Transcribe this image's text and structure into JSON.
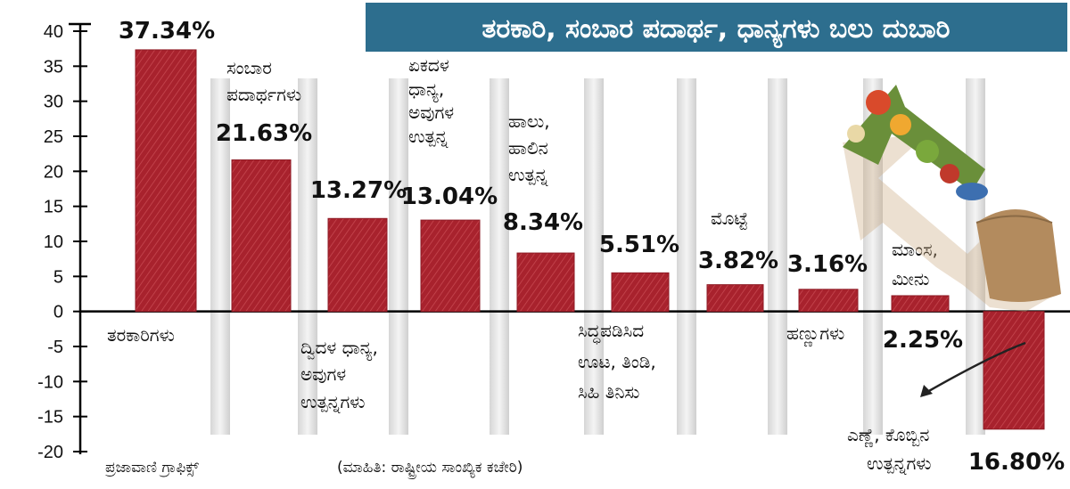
{
  "chart_data": {
    "type": "bar",
    "title": "ತರಕಾರಿ, ಸಂಬಾರ ಪದಾರ್ಥ, ಧಾನ್ಯಗಳು ಬಲು ದುಬಾರಿ",
    "ylim": [
      -20,
      40
    ],
    "yticks": [
      40,
      35,
      30,
      25,
      20,
      15,
      10,
      5,
      0,
      -5,
      -10,
      -15,
      -20
    ],
    "bar_color": "#a8222d",
    "title_bg": "#2d6e8e",
    "categories": [
      [
        "ತರಕಾರಿಗಳು"
      ],
      [
        "ಸಂಬಾರ",
        "ಪದಾರ್ಥಗಳು"
      ],
      [
        "ದ್ವಿದಳ ಧಾನ್ಯ,",
        "ಅವುಗಳ",
        "ಉತ್ಪನ್ನಗಳು"
      ],
      [
        "ಏಕದಳ",
        "ಧಾನ್ಯ,",
        "ಅವುಗಳ",
        "ಉತ್ಪನ್ನ"
      ],
      [
        "ಹಾಲು,",
        "ಹಾಲಿನ",
        "ಉತ್ಪನ್ನ"
      ],
      [
        "ಸಿದ್ಧಪಡಿಸಿದ",
        "ಊಟ, ತಿಂಡಿ,",
        "ಸಿಹಿ ತಿನಿಸು"
      ],
      [
        "ಮೊಟ್ಟೆ"
      ],
      [
        "ಹಣ್ಣುಗಳು"
      ],
      [
        "ಮಾಂಸ,",
        "ಮೀನು"
      ],
      [
        "ಎಣ್ಣೆ, ಕೊಬ್ಬಿನ",
        "ಉತ್ಪನ್ನಗಳು"
      ]
    ],
    "values": [
      37.34,
      21.63,
      13.27,
      13.04,
      8.34,
      5.51,
      3.82,
      3.16,
      2.25,
      -16.8
    ],
    "value_labels": [
      "37.34%",
      "21.63%",
      "13.27%",
      "13.04%",
      "8.34%",
      "5.51%",
      "3.82%",
      "3.16%",
      "2.25%",
      "16.80%"
    ]
  },
  "credit": "ಪ್ರಜಾವಾಣಿ ಗ್ರಾಫಿಕ್ಸ್",
  "source": "(ಮಾಹಿತಿ: ರಾಷ್ಟ್ರೀಯ ಸಾಂಖ್ಯಿಕ ಕಚೇರಿ)",
  "illustration_icon": "vegetable-arrow-icon"
}
